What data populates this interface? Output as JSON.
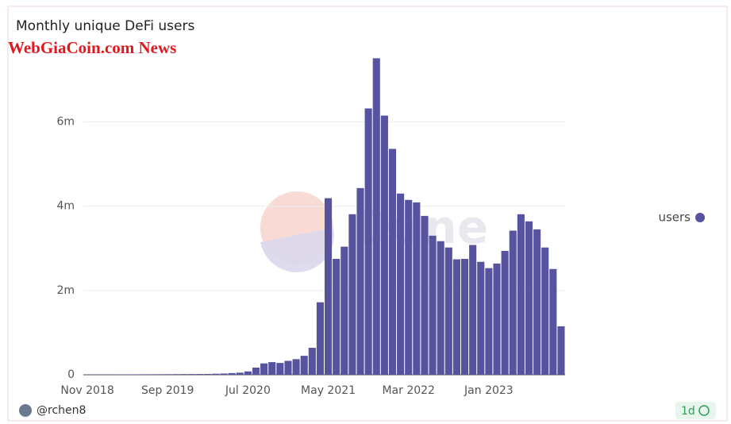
{
  "chart_data": {
    "type": "bar",
    "title": "Monthly unique DeFi users",
    "watermark": "WebGiaCoin.com News",
    "logo_text": "Dune",
    "author": "@rchen8",
    "refresh": "1d",
    "categories": [
      "Nov 2018",
      null,
      null,
      null,
      null,
      null,
      null,
      null,
      null,
      null,
      "Sep 2019",
      null,
      null,
      null,
      null,
      null,
      null,
      null,
      null,
      null,
      "Jul 2020",
      null,
      null,
      null,
      null,
      null,
      null,
      null,
      null,
      null,
      "May 2021",
      null,
      null,
      null,
      null,
      null,
      null,
      null,
      null,
      null,
      "Mar 2022",
      null,
      null,
      null,
      null,
      null,
      null,
      null,
      null,
      null,
      "Jan 2023",
      null,
      null,
      null,
      null,
      null,
      null,
      null,
      null,
      null
    ],
    "series": [
      {
        "name": "users",
        "color": "#57539f",
        "values": [
          5000,
          6000,
          7000,
          7000,
          8000,
          9000,
          10000,
          11000,
          12000,
          13000,
          14000,
          15000,
          16000,
          17000,
          18000,
          20000,
          25000,
          30000,
          40000,
          50000,
          80000,
          170000,
          270000,
          300000,
          280000,
          330000,
          370000,
          450000,
          640000,
          1720000,
          4190000,
          2750000,
          3040000,
          3810000,
          4430000,
          6320000,
          7510000,
          6150000,
          5360000,
          4300000,
          4150000,
          4090000,
          3770000,
          3300000,
          3170000,
          3020000,
          2740000,
          2750000,
          3080000,
          2680000,
          2530000,
          2640000,
          2940000,
          3420000,
          3810000,
          3640000,
          3450000,
          3020000,
          2510000,
          1150000
        ]
      }
    ],
    "ylim": [
      0,
      7800000
    ],
    "yticks": [
      0,
      {
        "value": 2000000,
        "label": "2m"
      },
      {
        "value": 4000000,
        "label": "4m"
      },
      {
        "value": 6000000,
        "label": "6m"
      }
    ],
    "grid": true,
    "legend": "right"
  }
}
